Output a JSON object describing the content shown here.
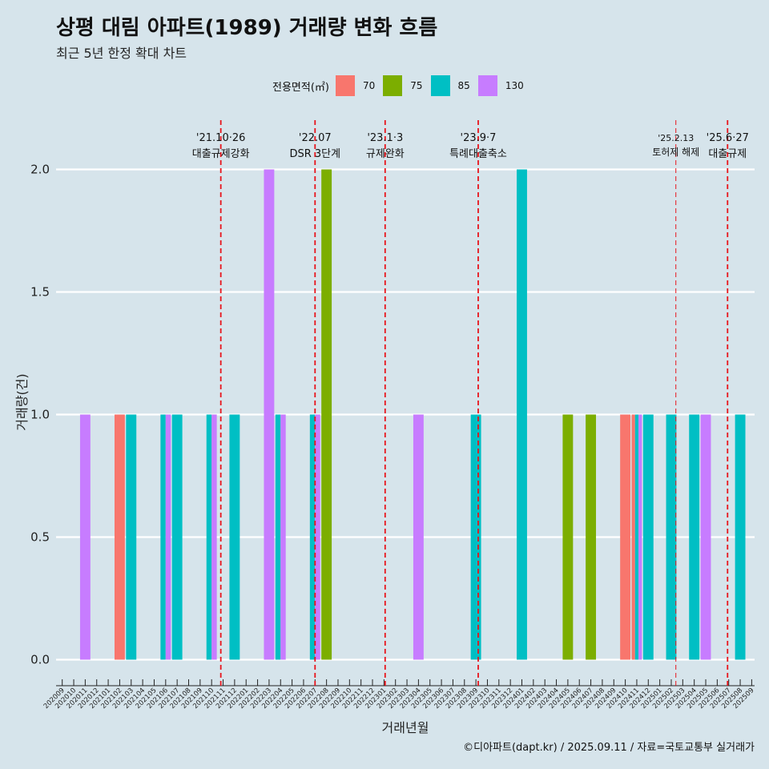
{
  "title": "상평 대림 아파트(1989) 거래량 변화 흐름",
  "subtitle": "최근 5년 한정 확대 차트",
  "caption": "©디아파트(dapt.kr) / 2025.09.11 / 자료=국토교통부 실거래가",
  "legend": {
    "title": "전용면적(㎡)",
    "items": [
      {
        "label": "70",
        "color": "#F8766D"
      },
      {
        "label": "75",
        "color": "#7CAE00"
      },
      {
        "label": "85",
        "color": "#00BFC4"
      },
      {
        "label": "130",
        "color": "#C77CFF"
      }
    ]
  },
  "chart_data": {
    "type": "bar",
    "xlabel": "거래년월",
    "ylabel": "거래량(건)",
    "ylim": [
      0,
      2
    ],
    "yticks": [
      "0.0",
      "0.5",
      "1.0",
      "1.5",
      "2.0"
    ],
    "grid": "horizontal",
    "categories": [
      "202009",
      "202010",
      "202011",
      "202012",
      "202101",
      "202102",
      "202103",
      "202104",
      "202105",
      "202106",
      "202107",
      "202108",
      "202109",
      "202110",
      "202111",
      "202112",
      "202201",
      "202202",
      "202203",
      "202204",
      "202205",
      "202206",
      "202207",
      "202208",
      "202209",
      "202210",
      "202211",
      "202212",
      "202301",
      "202302",
      "202303",
      "202304",
      "202305",
      "202306",
      "202307",
      "202308",
      "202309",
      "202310",
      "202311",
      "202312",
      "202401",
      "202402",
      "202403",
      "202404",
      "202405",
      "202406",
      "202407",
      "202408",
      "202409",
      "202410",
      "202411",
      "202412",
      "202501",
      "202502",
      "202503",
      "202504",
      "202505",
      "202506",
      "202507",
      "202508",
      "202509"
    ],
    "bars": [
      {
        "month": "202011",
        "series": "130",
        "value": 1
      },
      {
        "month": "202102",
        "series": "70",
        "value": 1
      },
      {
        "month": "202103",
        "series": "85",
        "value": 1
      },
      {
        "month": "202106",
        "series": "85",
        "value": 1
      },
      {
        "month": "202106",
        "series": "130",
        "value": 1
      },
      {
        "month": "202107",
        "series": "85",
        "value": 1
      },
      {
        "month": "202110",
        "series": "85",
        "value": 1
      },
      {
        "month": "202110",
        "series": "130",
        "value": 1
      },
      {
        "month": "202112",
        "series": "85",
        "value": 1
      },
      {
        "month": "202203",
        "series": "130",
        "value": 2
      },
      {
        "month": "202204",
        "series": "85",
        "value": 1
      },
      {
        "month": "202204",
        "series": "130",
        "value": 1
      },
      {
        "month": "202207",
        "series": "85",
        "value": 1
      },
      {
        "month": "202207",
        "series": "130",
        "value": 1
      },
      {
        "month": "202208",
        "series": "75",
        "value": 2
      },
      {
        "month": "202304",
        "series": "130",
        "value": 1
      },
      {
        "month": "202309",
        "series": "85",
        "value": 1
      },
      {
        "month": "202401",
        "series": "85",
        "value": 2
      },
      {
        "month": "202405",
        "series": "75",
        "value": 1
      },
      {
        "month": "202407",
        "series": "75",
        "value": 1
      },
      {
        "month": "202410",
        "series": "70",
        "value": 1
      },
      {
        "month": "202411",
        "series": "70",
        "value": 1
      },
      {
        "month": "202411",
        "series": "85",
        "value": 1
      },
      {
        "month": "202411",
        "series": "130",
        "value": 1
      },
      {
        "month": "202412",
        "series": "85",
        "value": 1
      },
      {
        "month": "202502",
        "series": "85",
        "value": 1
      },
      {
        "month": "202504",
        "series": "85",
        "value": 1
      },
      {
        "month": "202505",
        "series": "130",
        "value": 1
      },
      {
        "month": "202508",
        "series": "85",
        "value": 1
      }
    ],
    "events": [
      {
        "date": "2021-10-26",
        "month": "202110",
        "offset": 0.8,
        "date_label": "'21.10·26",
        "label": "대출규제강화"
      },
      {
        "date": "2022-07-01",
        "month": "202207",
        "offset": 0.0,
        "date_label": "'22.07",
        "label": "DSR 3단계"
      },
      {
        "date": "2023-01-03",
        "month": "202301",
        "offset": 0.1,
        "date_label": "'23.1·3",
        "label": "규제완화"
      },
      {
        "date": "2023-09-07",
        "month": "202309",
        "offset": 0.2,
        "date_label": "'23.9·7",
        "label": "특례대출축소"
      },
      {
        "date": "2025-02-13",
        "month": "202502",
        "offset": 0.4,
        "date_label": "'25.2.13",
        "label": "토허제 해제"
      },
      {
        "date": "2025-06-27",
        "month": "202506",
        "offset": 0.9,
        "date_label": "'25.6·27",
        "label": "대출규제"
      }
    ]
  }
}
